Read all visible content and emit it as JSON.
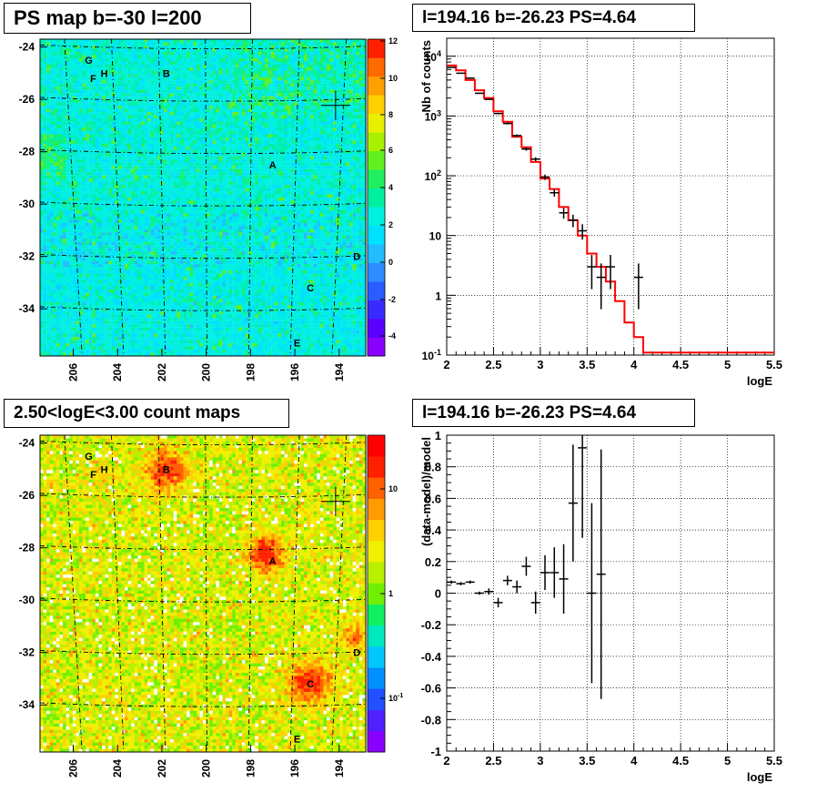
{
  "titles": {
    "map_top": "PS map b=-30 l=200",
    "spec_top": "l=194.16 b=-26.23 PS=4.64",
    "map_bottom": "2.50<logE<3.00 count maps",
    "ratio_bottom": "l=194.16 b=-26.23 PS=4.64"
  },
  "colors": {
    "data": "#000000",
    "model": "#ff0000",
    "grid": "#000000"
  },
  "chart_data": [
    {
      "type": "heatmap",
      "title": "PS map b=-30 l=200",
      "x_ticks": [
        "206",
        "204",
        "202",
        "200",
        "198",
        "196",
        "194"
      ],
      "y_ticks": [
        "-24",
        "-26",
        "-28",
        "-30",
        "-32",
        "-34"
      ],
      "colorbar_ticks": [
        "12",
        "10",
        "8",
        "6",
        "4",
        "2",
        "0",
        "-2",
        "-4"
      ],
      "colorbar_range": [
        -5,
        12
      ],
      "sources": [
        {
          "label": "G",
          "l": 205.3,
          "b": -24.5
        },
        {
          "label": "H",
          "l": 204.6,
          "b": -25.0
        },
        {
          "label": "F",
          "l": 205.1,
          "b": -25.2
        },
        {
          "label": "B",
          "l": 201.8,
          "b": -25.0
        },
        {
          "label": "A",
          "l": 197.0,
          "b": -28.5
        },
        {
          "label": "D",
          "l": 193.2,
          "b": -32.0
        },
        {
          "label": "C",
          "l": 195.3,
          "b": -33.2
        },
        {
          "label": "E",
          "l": 195.9,
          "b": -35.3
        }
      ],
      "marker": {
        "l": 194.16,
        "b": -26.23
      }
    },
    {
      "type": "line",
      "title": "l=194.16 b=-26.23 PS=4.64",
      "xlabel": "logE",
      "ylabel": "Nb of counts",
      "xlim": [
        2,
        5.5
      ],
      "ylim": [
        0.1,
        20000
      ],
      "log_y": true,
      "x_ticks": [
        "2",
        "2.5",
        "3",
        "3.5",
        "4",
        "4.5",
        "5",
        "5.5"
      ],
      "y_ticks": [
        "10^-1",
        "1",
        "10",
        "10^2",
        "10^3",
        "10^4"
      ],
      "grid": true,
      "series": [
        {
          "name": "data",
          "x": [
            2.05,
            2.15,
            2.25,
            2.35,
            2.45,
            2.55,
            2.65,
            2.75,
            2.85,
            2.95,
            3.05,
            3.15,
            3.25,
            3.35,
            3.45,
            3.55,
            3.65,
            3.75,
            4.05
          ],
          "y": [
            6500,
            5200,
            4300,
            2400,
            1900,
            1100,
            750,
            470,
            280,
            190,
            95,
            52,
            24,
            18,
            12,
            3,
            2,
            3,
            2
          ]
        },
        {
          "name": "model",
          "step_edges": [
            2.0,
            2.1,
            2.2,
            2.3,
            2.4,
            2.5,
            2.6,
            2.7,
            2.8,
            2.9,
            3.0,
            3.1,
            3.2,
            3.3,
            3.4,
            3.5,
            3.6,
            3.7,
            3.8,
            3.9,
            4.0,
            4.1,
            5.5
          ],
          "y": [
            7000,
            5800,
            4000,
            2700,
            2000,
            1200,
            800,
            450,
            300,
            170,
            90,
            60,
            30,
            18,
            10,
            5,
            3,
            1.7,
            0.8,
            0.35,
            0.2,
            0.11
          ]
        }
      ]
    },
    {
      "type": "heatmap",
      "title": "2.50<logE<3.00 count maps",
      "x_ticks": [
        "206",
        "204",
        "202",
        "200",
        "198",
        "196",
        "194"
      ],
      "y_ticks": [
        "-24",
        "-26",
        "-28",
        "-30",
        "-32",
        "-34"
      ],
      "colorbar_ticks": [
        "10",
        "1",
        "10^-1"
      ],
      "log_color": true,
      "sources": [
        {
          "label": "G",
          "l": 205.3,
          "b": -24.5
        },
        {
          "label": "H",
          "l": 204.6,
          "b": -25.0
        },
        {
          "label": "F",
          "l": 205.1,
          "b": -25.2
        },
        {
          "label": "B",
          "l": 201.8,
          "b": -25.0
        },
        {
          "label": "A",
          "l": 197.0,
          "b": -28.5
        },
        {
          "label": "D",
          "l": 193.2,
          "b": -32.0
        },
        {
          "label": "C",
          "l": 195.3,
          "b": -33.2
        },
        {
          "label": "E",
          "l": 195.9,
          "b": -35.3
        }
      ],
      "marker": {
        "l": 194.16,
        "b": -26.23
      }
    },
    {
      "type": "scatter",
      "title": "l=194.16 b=-26.23 PS=4.64",
      "xlabel": "logE",
      "ylabel": "(data-model)/model",
      "xlim": [
        2,
        5.5
      ],
      "ylim": [
        -1,
        1
      ],
      "x_ticks": [
        "2",
        "2.5",
        "3",
        "3.5",
        "4",
        "4.5",
        "5",
        "5.5"
      ],
      "y_ticks": [
        "-1",
        "-0.8",
        "-0.6",
        "-0.4",
        "-0.2",
        "0",
        "0.2",
        "0.4",
        "0.6",
        "0.8",
        "1"
      ],
      "grid": true,
      "points": [
        {
          "x": 2.05,
          "y": 0.07,
          "err": 0.01
        },
        {
          "x": 2.15,
          "y": 0.06,
          "err": 0.01
        },
        {
          "x": 2.25,
          "y": 0.07,
          "err": 0.01
        },
        {
          "x": 2.35,
          "y": 0.0,
          "err": 0.01
        },
        {
          "x": 2.45,
          "y": 0.01,
          "err": 0.02
        },
        {
          "x": 2.55,
          "y": -0.06,
          "err": 0.03
        },
        {
          "x": 2.65,
          "y": 0.08,
          "err": 0.03
        },
        {
          "x": 2.75,
          "y": 0.04,
          "err": 0.04
        },
        {
          "x": 2.85,
          "y": 0.17,
          "err": 0.06
        },
        {
          "x": 2.95,
          "y": -0.06,
          "err": 0.07
        },
        {
          "x": 3.05,
          "y": 0.13,
          "err": 0.11
        },
        {
          "x": 3.15,
          "y": 0.13,
          "err": 0.16
        },
        {
          "x": 3.25,
          "y": 0.09,
          "err": 0.22
        },
        {
          "x": 3.35,
          "y": 0.57,
          "err": 0.37
        },
        {
          "x": 3.45,
          "y": 0.92,
          "err": 0.57
        },
        {
          "x": 3.55,
          "y": 0.0,
          "err": 0.57
        },
        {
          "x": 3.65,
          "y": 0.12,
          "err": 0.79
        }
      ]
    }
  ]
}
